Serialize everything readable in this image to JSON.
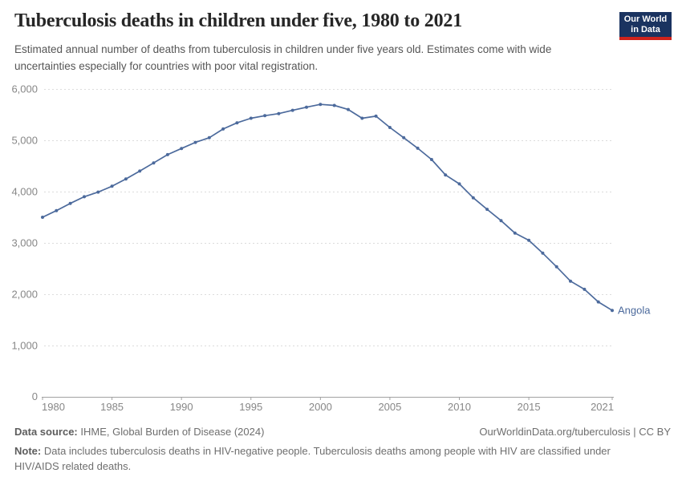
{
  "header": {
    "title": "Tuberculosis deaths in children under five, 1980 to 2021",
    "subtitle": "Estimated annual number of deaths from tuberculosis in children under five years old. Estimates come with wide uncertainties especially for countries with poor vital registration.",
    "logo_line1": "Our World",
    "logo_line2": "in Data",
    "logo_bg_color": "#1a3360",
    "logo_accent_color": "#cf231c"
  },
  "footer": {
    "source_label": "Data source:",
    "source_value": "IHME, Global Burden of Disease (2024)",
    "link": "OurWorldinData.org/tuberculosis | CC BY",
    "note_label": "Note:",
    "note_value": "Data includes tuberculosis deaths in HIV-negative people. Tuberculosis deaths among people with HIV are classified under HIV/AIDS related deaths."
  },
  "chart_data": {
    "type": "line",
    "title": "Tuberculosis deaths in children under five, 1980 to 2021",
    "xlabel": "",
    "ylabel": "",
    "xlim": [
      1980,
      2021
    ],
    "ylim": [
      0,
      6000
    ],
    "x_ticks": [
      1980,
      1985,
      1990,
      1995,
      2000,
      2005,
      2010,
      2015,
      2021
    ],
    "y_ticks": [
      0,
      1000,
      2000,
      3000,
      4000,
      5000,
      6000
    ],
    "grid": "horizontal-dashed",
    "legend_position": "end-of-line-label",
    "series": [
      {
        "name": "Angola",
        "color": "#4c6a9c",
        "x": [
          1980,
          1981,
          1982,
          1983,
          1984,
          1985,
          1986,
          1987,
          1988,
          1989,
          1990,
          1991,
          1992,
          1993,
          1994,
          1995,
          1996,
          1997,
          1998,
          1999,
          2000,
          2001,
          2002,
          2003,
          2004,
          2005,
          2006,
          2007,
          2008,
          2009,
          2010,
          2011,
          2012,
          2013,
          2014,
          2015,
          2016,
          2017,
          2018,
          2019,
          2020,
          2021
        ],
        "values": [
          3500,
          3630,
          3770,
          3900,
          3990,
          4105,
          4245,
          4400,
          4560,
          4720,
          4840,
          4960,
          5050,
          5220,
          5340,
          5430,
          5480,
          5520,
          5585,
          5645,
          5700,
          5680,
          5600,
          5430,
          5470,
          5250,
          5050,
          4845,
          4625,
          4325,
          4150,
          3880,
          3655,
          3435,
          3190,
          3050,
          2800,
          2535,
          2255,
          2095,
          1850,
          1685
        ]
      }
    ]
  }
}
